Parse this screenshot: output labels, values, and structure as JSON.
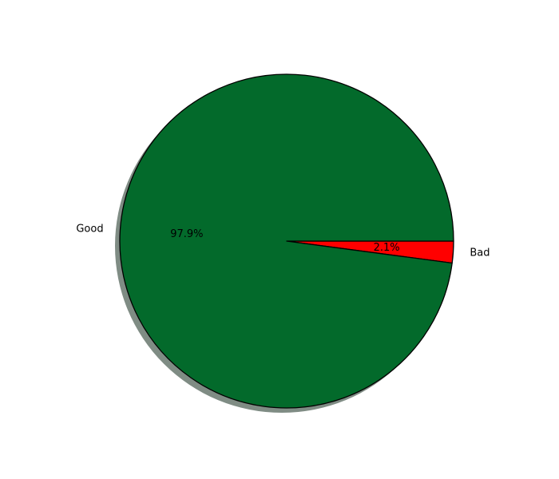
{
  "chart_data": {
    "type": "pie",
    "title": "",
    "start_angle_deg": 0,
    "counterclock": false,
    "shadow": true,
    "edge_color": "#000000",
    "slices": [
      {
        "label": "Bad",
        "value": 2.1,
        "pct_label": "2.1%",
        "color": "#ff0000"
      },
      {
        "label": "Good",
        "value": 97.9,
        "pct_label": "97.9%",
        "color": "#036a2b"
      }
    ],
    "shadow_color": "#7f8c84"
  }
}
